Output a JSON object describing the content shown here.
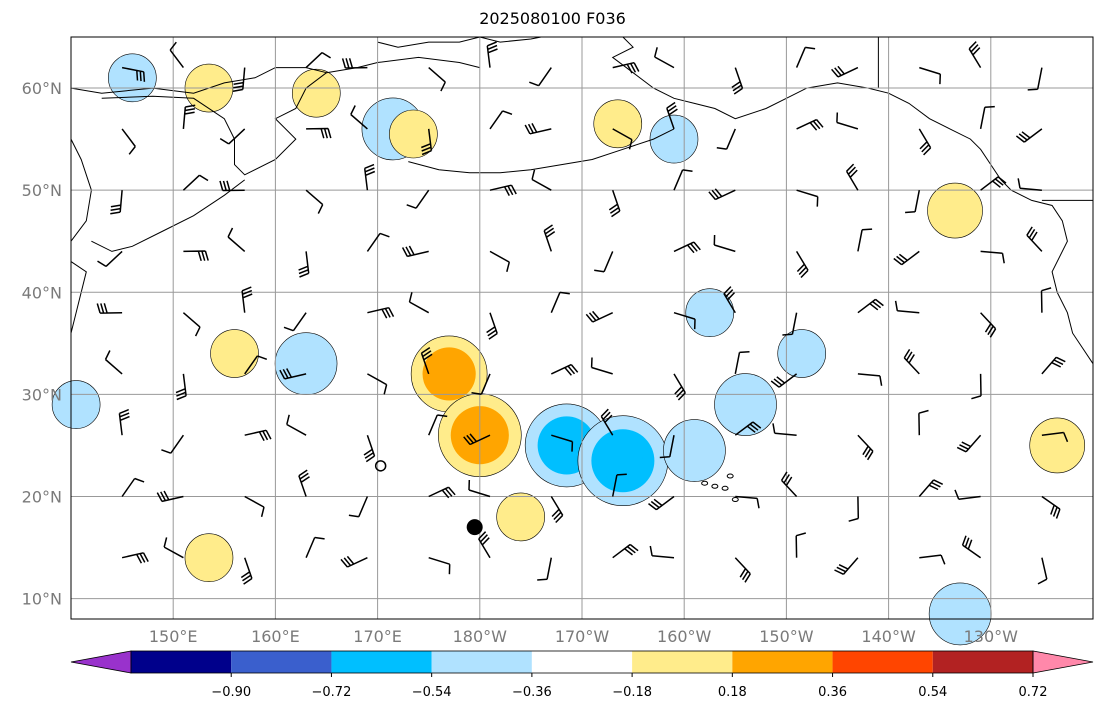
{
  "title": "2025080100 F036",
  "map": {
    "lat_labels": [
      {
        "lat": 60,
        "label": "60°N"
      },
      {
        "lat": 50,
        "label": "50°N"
      },
      {
        "lat": 40,
        "label": "40°N"
      },
      {
        "lat": 30,
        "label": "30°N"
      },
      {
        "lat": 20,
        "label": "20°N"
      },
      {
        "lat": 10,
        "label": "10°N"
      }
    ],
    "lon_labels": [
      {
        "lon": 150,
        "label": "150°E"
      },
      {
        "lon": 160,
        "label": "160°E"
      },
      {
        "lon": 170,
        "label": "170°E"
      },
      {
        "lon": 180,
        "label": "180°W"
      },
      {
        "lon": 190,
        "label": "170°W"
      },
      {
        "lon": 200,
        "label": "160°W"
      },
      {
        "lon": 210,
        "label": "150°W"
      },
      {
        "lon": 220,
        "label": "140°W"
      },
      {
        "lon": 230,
        "label": "130°W"
      }
    ],
    "extent": {
      "lon_min": 140,
      "lon_max": 240,
      "lat_min": 8,
      "lat_max": 65
    },
    "grid": true
  },
  "colorbar": {
    "colors": [
      "#9932cc",
      "#00008b",
      "#3a5fcd",
      "#00bfff",
      "#b0e2ff",
      "#ffffff",
      "#ffec8b",
      "#ffa500",
      "#ff4500",
      "#b22222",
      "#ff88aa"
    ],
    "ticks": [
      "−0.90",
      "−0.72",
      "−0.54",
      "−0.36",
      "−0.18",
      "0.18",
      "0.36",
      "0.54",
      "0.72",
      "0.90"
    ]
  },
  "markers": [
    {
      "type": "dot",
      "lon": 179.5,
      "lat": 17
    },
    {
      "type": "ring",
      "lon": 170.3,
      "lat": 23
    }
  ],
  "anomalies": [
    {
      "lon": 146,
      "lat": 61,
      "level": -0.2
    },
    {
      "lon": 171.5,
      "lat": 56,
      "level": -0.3
    },
    {
      "lon": 199,
      "lat": 55,
      "level": -0.2
    },
    {
      "lon": 193.5,
      "lat": 56.5,
      "level": 0.2
    },
    {
      "lon": 173.5,
      "lat": 55.5,
      "level": 0.2
    },
    {
      "lon": 153.5,
      "lat": 60,
      "level": 0.2
    },
    {
      "lon": 164,
      "lat": 59.5,
      "level": 0.2
    },
    {
      "lon": 226.5,
      "lat": 48,
      "level": 0.25
    },
    {
      "lon": 156,
      "lat": 34,
      "level": 0.2
    },
    {
      "lon": 163,
      "lat": 33,
      "level": -0.3
    },
    {
      "lon": 177,
      "lat": 32,
      "level": 0.4
    },
    {
      "lon": 180,
      "lat": 26,
      "level": 0.45
    },
    {
      "lon": 188.5,
      "lat": 25,
      "level": -0.45
    },
    {
      "lon": 194,
      "lat": 23.5,
      "level": -0.5
    },
    {
      "lon": 201,
      "lat": 24.5,
      "level": -0.3
    },
    {
      "lon": 206,
      "lat": 29,
      "level": -0.3
    },
    {
      "lon": 211.5,
      "lat": 34,
      "level": -0.2
    },
    {
      "lon": 202.5,
      "lat": 38,
      "level": -0.2
    },
    {
      "lon": 236.5,
      "lat": 25,
      "level": 0.25
    },
    {
      "lon": 153.5,
      "lat": 14,
      "level": 0.2
    },
    {
      "lon": 184,
      "lat": 18,
      "level": 0.2
    },
    {
      "lon": 227,
      "lat": 8.5,
      "level": -0.3
    },
    {
      "lon": 140.5,
      "lat": 29,
      "level": -0.2
    }
  ],
  "wind_barbs_note": ""
}
